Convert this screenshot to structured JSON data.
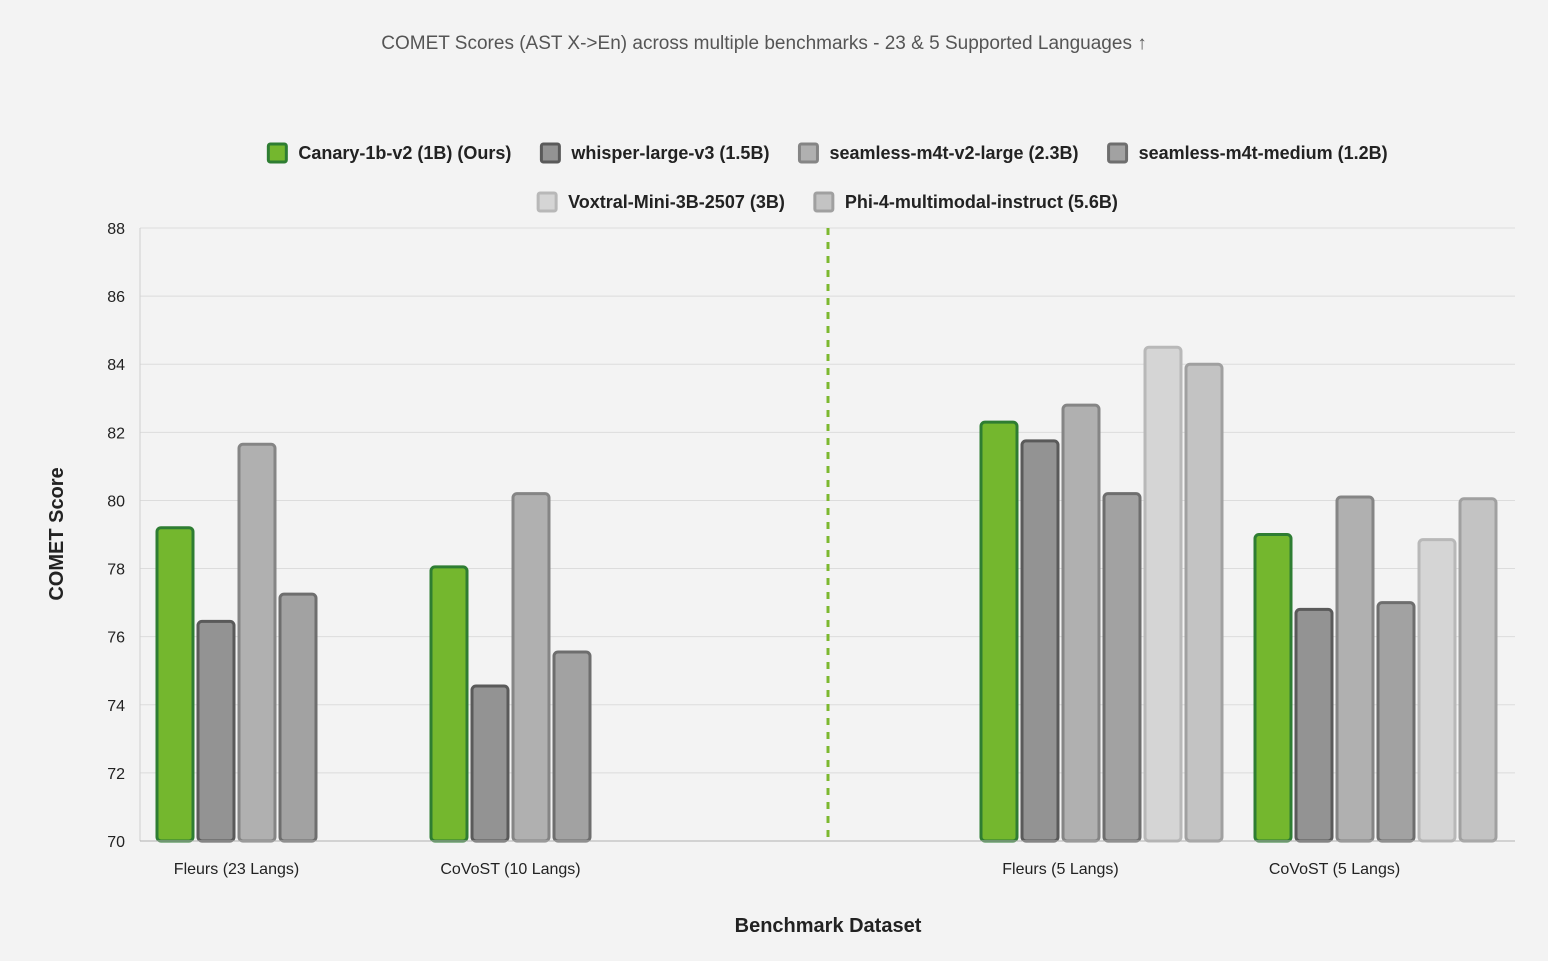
{
  "chart_data": {
    "type": "bar",
    "title": "COMET Scores (AST X->En) across multiple benchmarks - 23 & 5 Supported Languages ↑",
    "xlabel": "Benchmark Dataset",
    "ylabel": "COMET Score",
    "ylim": [
      70,
      88
    ],
    "yticks": [
      "70",
      "72",
      "74",
      "76",
      "78",
      "80",
      "82",
      "84",
      "86",
      "88"
    ],
    "grid": true,
    "legend_position": "top",
    "categories": [
      "Fleurs (23 Langs)",
      "CoVoST (10 Langs)",
      "Fleurs (5 Langs)",
      "CoVoST (5 Langs)"
    ],
    "separator": {
      "style": "dashed",
      "color": "#7cb82f",
      "between": [
        "CoVoST (10 Langs)",
        "Fleurs (5 Langs)"
      ]
    },
    "series": [
      {
        "name": "Canary-1b-v2 (1B) (Ours)",
        "fill": "#74b72e",
        "stroke": "#2e7d32",
        "values": [
          79.2,
          78.05,
          82.3,
          79.0
        ]
      },
      {
        "name": "whisper-large-v3 (1.5B)",
        "fill": "#939393",
        "stroke": "#5a5a5a",
        "values": [
          76.45,
          74.55,
          81.75,
          76.8
        ]
      },
      {
        "name": "seamless-m4t-v2-large (2.3B)",
        "fill": "#b0b0b0",
        "stroke": "#858585",
        "values": [
          81.65,
          80.2,
          82.8,
          80.1
        ]
      },
      {
        "name": "seamless-m4t-medium (1.2B)",
        "fill": "#a2a2a2",
        "stroke": "#6e6e6e",
        "values": [
          77.25,
          75.55,
          80.2,
          77.0
        ]
      },
      {
        "name": "Voxtral-Mini-3B-2507 (3B)",
        "fill": "#d5d5d5",
        "stroke": "#b8b8b8",
        "values": [
          null,
          null,
          84.5,
          78.85
        ]
      },
      {
        "name": "Phi-4-multimodal-instruct (5.6B)",
        "fill": "#c3c3c3",
        "stroke": "#a0a0a0",
        "values": [
          null,
          null,
          84.0,
          80.05
        ]
      }
    ]
  }
}
